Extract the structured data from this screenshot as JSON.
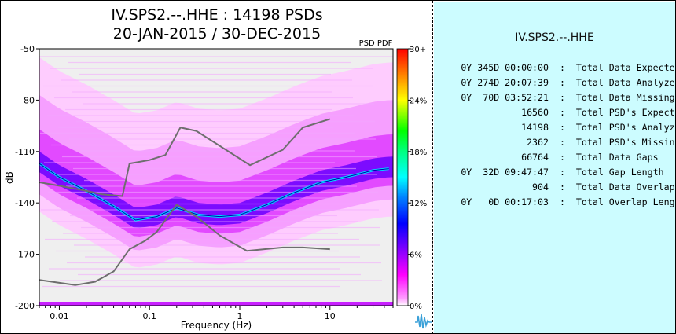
{
  "title_line1": "IV.SPS2.--.HHE : 14198 PSDs",
  "title_line2": "20-JAN-2015 / 30-DEC-2015",
  "colorbar": {
    "title": "PSD PDF",
    "ticks": [
      "30+",
      "24%",
      "18%",
      "12%",
      "6%",
      "0%"
    ]
  },
  "panel": {
    "station": "IV.SPS2.--.HHE",
    "stats": [
      {
        "left": "0Y 345D 00:00:00",
        "right": "Total Data Expected"
      },
      {
        "left": "0Y 274D 20:07:39",
        "right": "Total Data Analyzed"
      },
      {
        "left": "0Y  70D 03:52:21",
        "right": "Total Data Missing"
      },
      {
        "left": "16560",
        "right": "Total PSD's Expected"
      },
      {
        "left": "14198",
        "right": "Total PSD's Analyzed"
      },
      {
        "left": "2362",
        "right": "Total PSD's Missing"
      },
      {
        "left": "66764",
        "right": "Total Data Gaps"
      },
      {
        "left": "0Y  32D 09:47:47",
        "right": "Total Gap Length"
      },
      {
        "left": "904",
        "right": "Total Data Overlaps"
      },
      {
        "left": "0Y   0D 00:17:03",
        "right": "Total Overlap Length"
      }
    ]
  },
  "chart_data": {
    "type": "heatmap",
    "title": "IV.SPS2.--.HHE : 14198 PSDs",
    "subtitle": "20-JAN-2015 / 30-DEC-2015",
    "xlabel": "Frequency (Hz)",
    "ylabel": "dB",
    "x_scale": "log",
    "xlim": [
      0.006,
      50
    ],
    "ylim": [
      -200,
      -50
    ],
    "x_ticks": [
      0.01,
      0.1,
      1,
      10
    ],
    "x_tick_labels": [
      "0.01",
      "0.1",
      "1",
      "10"
    ],
    "y_ticks": [
      -50,
      -80,
      -110,
      -140,
      -170,
      -200
    ],
    "y_tick_labels": [
      "-50",
      "-80",
      "-110",
      "-140",
      "-170",
      "-200"
    ],
    "colorbar_label": "PSD PDF",
    "colorbar_range": [
      0,
      30
    ],
    "colorbar_colors": [
      "#ff00ff",
      "#0000ff",
      "#00ffff",
      "#00ff00",
      "#ffff00",
      "#ff0000"
    ],
    "mode_line": [
      {
        "x": 0.006,
        "y": -117
      },
      {
        "x": 0.01,
        "y": -125
      },
      {
        "x": 0.02,
        "y": -133
      },
      {
        "x": 0.04,
        "y": -142
      },
      {
        "x": 0.07,
        "y": -150
      },
      {
        "x": 0.12,
        "y": -148
      },
      {
        "x": 0.2,
        "y": -143
      },
      {
        "x": 0.35,
        "y": -147
      },
      {
        "x": 0.6,
        "y": -148
      },
      {
        "x": 1,
        "y": -147
      },
      {
        "x": 2,
        "y": -141
      },
      {
        "x": 4,
        "y": -134
      },
      {
        "x": 8,
        "y": -128
      },
      {
        "x": 15,
        "y": -125
      },
      {
        "x": 30,
        "y": -121
      },
      {
        "x": 45,
        "y": -120
      }
    ],
    "high_noise_model": [
      {
        "x": 0.006,
        "y": -128
      },
      {
        "x": 0.01,
        "y": -130
      },
      {
        "x": 0.02,
        "y": -133
      },
      {
        "x": 0.03,
        "y": -135
      },
      {
        "x": 0.05,
        "y": -136
      },
      {
        "x": 0.06,
        "y": -117
      },
      {
        "x": 0.1,
        "y": -115
      },
      {
        "x": 0.15,
        "y": -112
      },
      {
        "x": 0.22,
        "y": -96
      },
      {
        "x": 0.33,
        "y": -98
      },
      {
        "x": 1.3,
        "y": -118
      },
      {
        "x": 3,
        "y": -109
      },
      {
        "x": 5,
        "y": -96
      },
      {
        "x": 10,
        "y": -91
      }
    ],
    "low_noise_model": [
      {
        "x": 0.006,
        "y": -185
      },
      {
        "x": 0.015,
        "y": -188
      },
      {
        "x": 0.025,
        "y": -186
      },
      {
        "x": 0.04,
        "y": -180
      },
      {
        "x": 0.06,
        "y": -167
      },
      {
        "x": 0.09,
        "y": -162
      },
      {
        "x": 0.12,
        "y": -157
      },
      {
        "x": 0.2,
        "y": -141
      },
      {
        "x": 0.33,
        "y": -148
      },
      {
        "x": 0.6,
        "y": -159
      },
      {
        "x": 1.2,
        "y": -168
      },
      {
        "x": 3,
        "y": -166
      },
      {
        "x": 5,
        "y": -166
      },
      {
        "x": 10,
        "y": -167
      }
    ]
  }
}
